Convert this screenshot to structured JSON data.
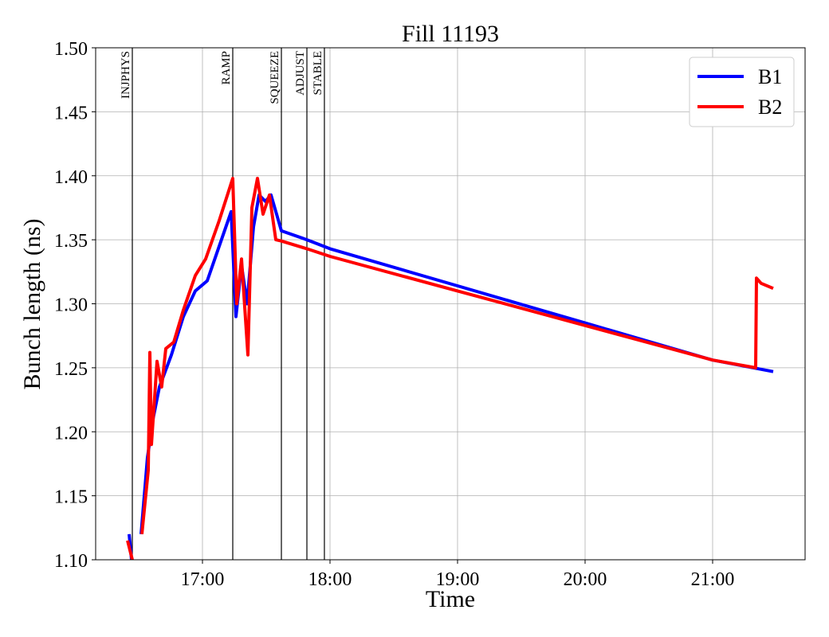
{
  "chart_data": {
    "type": "line",
    "title": "Fill 11193",
    "xlabel": "Time",
    "ylabel": "Bunch length (ns)",
    "xlim": [
      16.1625,
      21.725
    ],
    "ylim": [
      1.1,
      1.5
    ],
    "xticks": [
      {
        "value": 17,
        "label": "17:00"
      },
      {
        "value": 18,
        "label": "18:00"
      },
      {
        "value": 19,
        "label": "19:00"
      },
      {
        "value": 20,
        "label": "20:00"
      },
      {
        "value": 21,
        "label": "21:00"
      }
    ],
    "yticks": [
      {
        "value": 1.1,
        "label": "1.10"
      },
      {
        "value": 1.15,
        "label": "1.15"
      },
      {
        "value": 1.2,
        "label": "1.20"
      },
      {
        "value": 1.25,
        "label": "1.25"
      },
      {
        "value": 1.3,
        "label": "1.30"
      },
      {
        "value": 1.35,
        "label": "1.35"
      },
      {
        "value": 1.4,
        "label": "1.40"
      },
      {
        "value": 1.45,
        "label": "1.45"
      },
      {
        "value": 1.5,
        "label": "1.50"
      }
    ],
    "grid": true,
    "legend": "upper-right",
    "markers": [
      {
        "label": "INJPHYS",
        "x": 16.45
      },
      {
        "label": "RAMP",
        "x": 17.2375
      },
      {
        "label": "SQUEEZE",
        "x": 17.6188
      },
      {
        "label": "ADJUST",
        "x": 17.8188
      },
      {
        "label": "STABLE",
        "x": 17.956
      }
    ],
    "series": [
      {
        "name": "B1",
        "color": "#0000ff",
        "x": [
          16.425,
          16.444,
          16.48,
          16.519,
          16.569,
          16.6125,
          16.6625,
          16.756,
          16.85,
          16.944,
          17.0375,
          17.131,
          17.225,
          17.2625,
          17.306,
          17.35,
          17.4,
          17.444,
          17.494,
          17.5375,
          17.581,
          17.619,
          17.819,
          18,
          19,
          20,
          21,
          21.475
        ],
        "values": [
          1.12,
          1.1,
          null,
          1.12,
          1.18,
          1.21,
          1.235,
          1.26,
          1.29,
          1.31,
          1.318,
          1.345,
          1.372,
          1.29,
          1.33,
          1.3,
          1.36,
          1.385,
          1.38,
          1.385,
          1.37,
          1.357,
          1.35,
          1.343,
          1.314,
          1.285,
          1.256,
          1.247
        ]
      },
      {
        "name": "B2",
        "color": "#ff0000",
        "x": [
          16.4125,
          16.45,
          16.49,
          16.525,
          16.575,
          16.5875,
          16.6,
          16.644,
          16.68,
          16.7125,
          16.775,
          16.85,
          16.944,
          17.025,
          17.131,
          17.2375,
          17.269,
          17.306,
          17.356,
          17.3875,
          17.431,
          17.475,
          17.525,
          17.575,
          17.619,
          17.819,
          18,
          19,
          20,
          21,
          21.3375,
          21.344,
          21.38,
          21.475
        ],
        "values": [
          1.115,
          1.1,
          null,
          1.12,
          1.17,
          1.262,
          1.19,
          1.255,
          1.235,
          1.265,
          1.27,
          1.295,
          1.322,
          1.335,
          1.365,
          1.398,
          1.3,
          1.335,
          1.26,
          1.375,
          1.398,
          1.37,
          1.385,
          1.35,
          1.349,
          1.343,
          1.337,
          1.31,
          1.283,
          1.256,
          1.25,
          1.32,
          1.316,
          1.312
        ]
      }
    ]
  }
}
